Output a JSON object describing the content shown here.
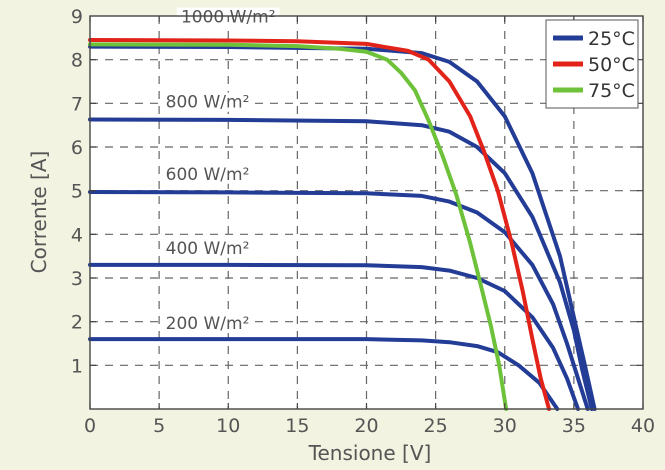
{
  "chart_data": {
    "type": "line",
    "xlabel": "Tensione [V]",
    "ylabel": "Corrente [A]",
    "xlim": [
      0,
      40
    ],
    "ylim": [
      0,
      9
    ],
    "xticks": [
      "0",
      "5",
      "10",
      "15",
      "20",
      "25",
      "30",
      "35",
      "40"
    ],
    "yticks": [
      "1",
      "2",
      "3",
      "4",
      "5",
      "6",
      "7",
      "8",
      "9"
    ],
    "grid": true,
    "legend_position": "top-right",
    "legend": [
      {
        "label": "25°C",
        "color": "#233c96"
      },
      {
        "label": "50°C",
        "color": "#e2231a"
      },
      {
        "label": "75°C",
        "color": "#6ec23a"
      }
    ],
    "annotations": [
      {
        "text": "1000 W/m²",
        "x": 10,
        "y": 8.85
      },
      {
        "text": "800 W/m²",
        "x": 8.5,
        "y": 6.9
      },
      {
        "text": "600 W/m²",
        "x": 8.5,
        "y": 5.25
      },
      {
        "text": "400 W/m²",
        "x": 8.5,
        "y": 3.55
      },
      {
        "text": "200 W/m²",
        "x": 8.5,
        "y": 1.83
      }
    ],
    "series": [
      {
        "color": "#233c96",
        "points": [
          [
            0,
            8.3
          ],
          [
            10,
            8.29
          ],
          [
            20,
            8.25
          ],
          [
            24,
            8.15
          ],
          [
            26,
            7.95
          ],
          [
            28,
            7.5
          ],
          [
            30,
            6.7
          ],
          [
            32,
            5.4
          ],
          [
            34,
            3.5
          ],
          [
            35,
            2.1
          ],
          [
            35.8,
            1.0
          ],
          [
            36.5,
            0
          ]
        ]
      },
      {
        "color": "#233c96",
        "points": [
          [
            0,
            6.63
          ],
          [
            10,
            6.62
          ],
          [
            20,
            6.59
          ],
          [
            24,
            6.5
          ],
          [
            26,
            6.35
          ],
          [
            28,
            6.0
          ],
          [
            30,
            5.4
          ],
          [
            32,
            4.4
          ],
          [
            34,
            2.9
          ],
          [
            35,
            1.8
          ],
          [
            35.6,
            0.9
          ],
          [
            36.3,
            0
          ]
        ]
      },
      {
        "color": "#233c96",
        "points": [
          [
            0,
            4.97
          ],
          [
            10,
            4.96
          ],
          [
            20,
            4.94
          ],
          [
            24,
            4.88
          ],
          [
            26,
            4.75
          ],
          [
            28,
            4.5
          ],
          [
            30,
            4.05
          ],
          [
            32,
            3.3
          ],
          [
            33.5,
            2.4
          ],
          [
            34.5,
            1.5
          ],
          [
            35.3,
            0.7
          ],
          [
            36,
            0
          ]
        ]
      },
      {
        "color": "#233c96",
        "points": [
          [
            0,
            3.3
          ],
          [
            10,
            3.3
          ],
          [
            20,
            3.29
          ],
          [
            24,
            3.25
          ],
          [
            26,
            3.17
          ],
          [
            28,
            3.0
          ],
          [
            30,
            2.7
          ],
          [
            32,
            2.1
          ],
          [
            33.5,
            1.4
          ],
          [
            34.5,
            0.7
          ],
          [
            35.3,
            0
          ]
        ]
      },
      {
        "color": "#233c96",
        "points": [
          [
            0,
            1.6
          ],
          [
            10,
            1.6
          ],
          [
            20,
            1.6
          ],
          [
            24,
            1.57
          ],
          [
            26,
            1.53
          ],
          [
            28,
            1.44
          ],
          [
            29.5,
            1.3
          ],
          [
            31,
            1.0
          ],
          [
            32.5,
            0.6
          ],
          [
            33.8,
            0
          ]
        ]
      },
      {
        "color": "#e2231a",
        "points": [
          [
            0,
            8.45
          ],
          [
            10,
            8.44
          ],
          [
            15,
            8.42
          ],
          [
            20,
            8.36
          ],
          [
            23,
            8.2
          ],
          [
            24.5,
            8.0
          ],
          [
            26,
            7.5
          ],
          [
            27.5,
            6.7
          ],
          [
            28.5,
            5.9
          ],
          [
            29.5,
            5.0
          ],
          [
            30.5,
            3.8
          ],
          [
            31.3,
            2.7
          ],
          [
            32,
            1.6
          ],
          [
            32.6,
            0.7
          ],
          [
            33.2,
            0
          ]
        ]
      },
      {
        "color": "#6ec23a",
        "points": [
          [
            0,
            8.35
          ],
          [
            10,
            8.34
          ],
          [
            15,
            8.31
          ],
          [
            18,
            8.25
          ],
          [
            20,
            8.18
          ],
          [
            21.5,
            8.0
          ],
          [
            22.5,
            7.7
          ],
          [
            23.5,
            7.3
          ],
          [
            24.5,
            6.6
          ],
          [
            25.5,
            5.8
          ],
          [
            26.5,
            4.9
          ],
          [
            27.5,
            3.8
          ],
          [
            28.3,
            2.8
          ],
          [
            29,
            1.9
          ],
          [
            29.6,
            1.0
          ],
          [
            30.1,
            0
          ]
        ]
      }
    ]
  }
}
